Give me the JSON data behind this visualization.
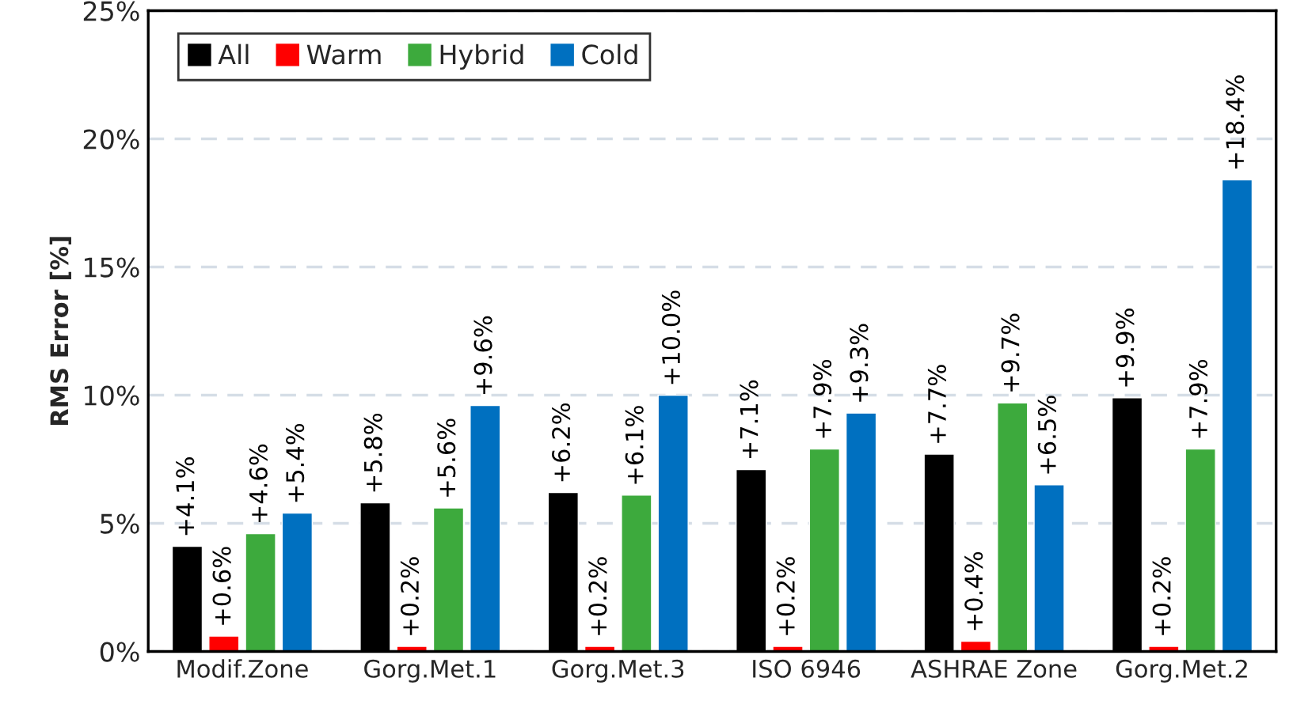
{
  "chart_data": {
    "type": "bar",
    "ylabel": "RMS Error [%]",
    "categories": [
      "Modif.Zone",
      "Gorg.Met.1",
      "Gorg.Met.3",
      "ISO 6946",
      "ASHRAE Zone",
      "Gorg.Met.2"
    ],
    "series": [
      {
        "name": "All",
        "color": "#000000",
        "values": [
          4.1,
          5.8,
          6.2,
          7.1,
          7.7,
          9.9
        ],
        "value_labels": [
          "+4.1%",
          "+5.8%",
          "+6.2%",
          "+7.1%",
          "+7.7%",
          "+9.9%"
        ]
      },
      {
        "name": "Warm",
        "color": "#ff0000",
        "values": [
          0.6,
          0.2,
          0.2,
          0.2,
          0.4,
          0.2
        ],
        "value_labels": [
          "+0.6%",
          "+0.2%",
          "+0.2%",
          "+0.2%",
          "+0.4%",
          "+0.2%"
        ]
      },
      {
        "name": "Hybrid",
        "color": "#3daa3d",
        "values": [
          4.6,
          5.6,
          6.1,
          7.9,
          9.7,
          7.9
        ],
        "value_labels": [
          "+4.6%",
          "+5.6%",
          "+6.1%",
          "+7.9%",
          "+9.7%",
          "+7.9%"
        ]
      },
      {
        "name": "Cold",
        "color": "#0070c0",
        "values": [
          5.4,
          9.6,
          10.0,
          9.3,
          6.5,
          18.4
        ],
        "value_labels": [
          "+5.4%",
          "+9.6%",
          "+10.0%",
          "+9.3%",
          "+6.5%",
          "+18.4%"
        ]
      }
    ],
    "ylim": [
      0,
      25
    ],
    "yticks": [
      {
        "value": 0,
        "label": "0%"
      },
      {
        "value": 5,
        "label": "5%"
      },
      {
        "value": 10,
        "label": "10%"
      },
      {
        "value": 15,
        "label": "15%"
      },
      {
        "value": 20,
        "label": "20%"
      },
      {
        "value": 25,
        "label": "25%"
      }
    ],
    "grid": "y",
    "legend": "top left"
  }
}
